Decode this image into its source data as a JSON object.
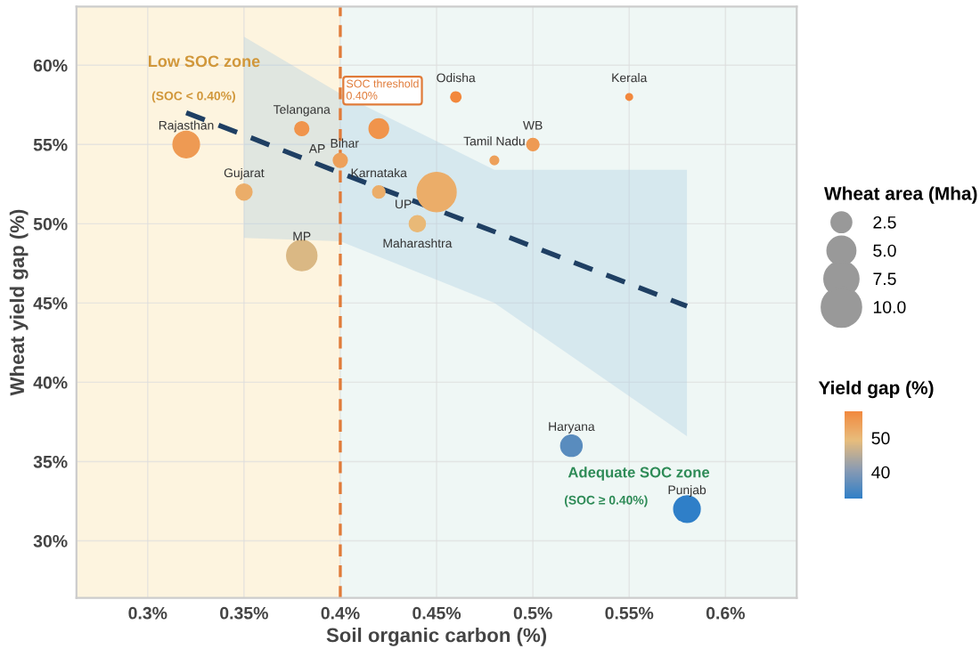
{
  "chart_data": {
    "type": "bubble",
    "xlabel": "Soil organic carbon (%)",
    "ylabel": "Wheat yield gap (%)",
    "legend_title": "Wheat area (Mha)",
    "clabel": "Yield gap (%)",
    "xlim": [
      0.263,
      0.637
    ],
    "ylim": [
      26.4,
      63.7
    ],
    "xticks": [
      {
        "value": 0.3,
        "label": "0.3%"
      },
      {
        "value": 0.35,
        "label": "0.35%"
      },
      {
        "value": 0.4,
        "label": "0.4%"
      },
      {
        "value": 0.45,
        "label": "0.45%"
      },
      {
        "value": 0.5,
        "label": "0.5%"
      },
      {
        "value": 0.55,
        "label": "0.55%"
      },
      {
        "value": 0.6,
        "label": "0.6%"
      }
    ],
    "yticks": [
      {
        "value": 30,
        "label": "30%"
      },
      {
        "value": 35,
        "label": "35%"
      },
      {
        "value": 40,
        "label": "40%"
      },
      {
        "value": 45,
        "label": "45%"
      },
      {
        "value": 50,
        "label": "50%"
      },
      {
        "value": 55,
        "label": "55%"
      },
      {
        "value": 60,
        "label": "60%"
      }
    ],
    "grid": true,
    "legend": "right",
    "size_legend": [
      {
        "value": 2.5,
        "label": "2.5"
      },
      {
        "value": 5,
        "label": "5.0"
      },
      {
        "value": 7.5,
        "label": "7.5"
      },
      {
        "value": 10,
        "label": "10.0"
      }
    ],
    "clim": [
      32,
      58
    ],
    "cticks": [
      40,
      50
    ],
    "series": [
      {
        "x": [
          0.32,
          0.38,
          0.35,
          0.38,
          0.4,
          0.42,
          0.42,
          0.45,
          0.44,
          0.46,
          0.48,
          0.5,
          0.55,
          0.52,
          0.58
        ],
        "values": [
          55,
          56,
          52,
          48,
          54,
          56,
          52,
          52,
          50,
          58,
          54,
          55,
          58,
          36,
          32
        ],
        "cvalues": [
          55,
          56,
          52,
          48,
          54,
          56,
          52,
          52,
          50,
          58,
          54,
          55,
          58,
          36,
          32
        ],
        "colors": [
          "#ee9a53",
          "#f0944c",
          "#ebad69",
          "#dab884",
          "#eda05a",
          "#f0944c",
          "#ebad69",
          "#ebad69",
          "#e9b977",
          "#f2883d",
          "#eda05a",
          "#ee9a53",
          "#f2883d",
          "#598cbe",
          "#2f7fc8"
        ],
        "sizes": [
          4.6,
          1.3,
          1.7,
          6.0,
          1.3,
          2.5,
          1.0,
          10.0,
          1.7,
          0.7,
          0.5,
          1.0,
          0.3,
          3.0,
          4.6
        ]
      },
      {
        "type": "line",
        "color": "#1f3f63",
        "line_style": "dashed",
        "x": [
          0.32,
          0.35,
          0.4,
          0.48,
          0.58
        ],
        "values": [
          57,
          55.6,
          53.2,
          49.5,
          44.8
        ],
        "lower": [
          null,
          49.1,
          48.9,
          45,
          36.6
        ],
        "upper": [
          null,
          61.8,
          58.2,
          53.4,
          53.4
        ]
      }
    ],
    "bands": [
      {
        "axis": "x",
        "from": 0.263,
        "to": 0.4,
        "label": "Low SOC zone",
        "color": "#fdf4df"
      },
      {
        "axis": "x",
        "from": 0.4,
        "to": 0.637,
        "label": "Adequate SOC zone",
        "color": "#eff7f5"
      }
    ],
    "ref_lines": [
      {
        "axis": "x",
        "value": 0.4,
        "label": "SOC threshold\n0.40%",
        "color": "#e07b39",
        "line_style": "dashed"
      }
    ],
    "annotations": [
      {
        "text": "Rajasthan",
        "x": 0.32,
        "y": 55
      },
      {
        "text": "Telangana",
        "x": 0.38,
        "y": 56
      },
      {
        "text": "Gujarat",
        "x": 0.35,
        "y": 52
      },
      {
        "text": "MP",
        "x": 0.38,
        "y": 48
      },
      {
        "text": "AP",
        "x": 0.4,
        "y": 54
      },
      {
        "text": "Bihar",
        "x": 0.42,
        "y": 56
      },
      {
        "text": "Karnataka",
        "x": 0.42,
        "y": 52
      },
      {
        "text": "UP",
        "x": 0.45,
        "y": 52
      },
      {
        "text": "Maharashtra",
        "x": 0.44,
        "y": 50
      },
      {
        "text": "Odisha",
        "x": 0.46,
        "y": 58
      },
      {
        "text": "Tamil Nadu",
        "x": 0.48,
        "y": 54
      },
      {
        "text": "WB",
        "x": 0.5,
        "y": 55
      },
      {
        "text": "Kerala",
        "x": 0.55,
        "y": 58
      },
      {
        "text": "Haryana",
        "x": 0.52,
        "y": 36
      },
      {
        "text": "Punjab",
        "x": 0.58,
        "y": 32
      },
      "(SOC < 0.40%)",
      "(SOC ≥ 0.40%)"
    ]
  }
}
